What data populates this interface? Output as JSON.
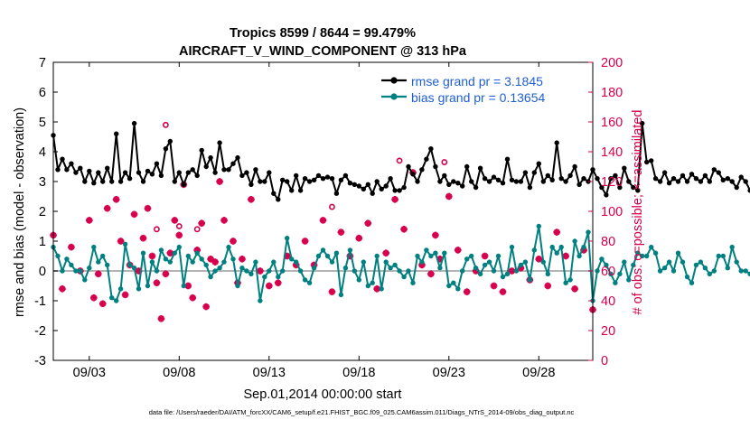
{
  "chart_data": {
    "type": "line",
    "title": "Tropics 8599 / 8644 = 99.479%",
    "subtitle": "AIRCRAFT_V_WIND_COMPONENT @ 313 hPa",
    "xlabel": "Sep.01,2014 00:00:00 start",
    "ylabel": "rmse and bias (model - observation)",
    "y2label": "# of obs: o=possible; ×=assimilated",
    "footer": "data file: /Users/raeder/DAI/ATM_forcXX/CAM6_setup/f.e21.FHIST_BGC.f09_025.CAM6assim.011/Diags_NTrS_2014-09/obs_diag_output.nc",
    "xlim": [
      1,
      31
    ],
    "ylim": [
      -3,
      7
    ],
    "y2lim": [
      0,
      200
    ],
    "x_ticks": [
      3,
      8,
      13,
      18,
      23,
      28
    ],
    "x_tick_labels": [
      "09/03",
      "09/08",
      "09/13",
      "09/18",
      "09/23",
      "09/28"
    ],
    "y_ticks": [
      -3,
      -2,
      -1,
      0,
      1,
      2,
      3,
      4,
      5,
      6,
      7
    ],
    "y2_ticks": [
      0,
      20,
      40,
      60,
      80,
      100,
      120,
      140,
      160,
      180,
      200
    ],
    "x_step": 0.25,
    "legend": {
      "location": "top-right",
      "entries": [
        "rmse grand pr = 3.1845",
        "bias grand pr = 0.13654"
      ]
    },
    "colors": {
      "rmse": "#000000",
      "bias": "#008080",
      "obs": "#d6004d",
      "zero_line": "#b4b4b4",
      "legend_text": "#1f5fd6"
    },
    "series": [
      {
        "name": "rmse",
        "values": [
          4.55,
          3.4,
          3.75,
          3.4,
          3.6,
          3.3,
          3.45,
          3.0,
          3.35,
          2.95,
          3.3,
          3.0,
          3.45,
          3.0,
          4.6,
          3.0,
          3.3,
          3.1,
          4.95,
          3.3,
          3.0,
          3.35,
          3.25,
          3.6,
          3.2,
          4.1,
          4.35,
          3.0,
          3.3,
          2.9,
          3.3,
          3.4,
          3.2,
          4.05,
          3.5,
          3.8,
          3.3,
          4.3,
          3.4,
          3.4,
          3.6,
          3.8,
          3.2,
          3.3,
          2.9,
          3.4,
          3.0,
          3.0,
          3.3,
          2.6,
          2.4,
          3.05,
          3.0,
          2.7,
          3.2,
          2.7,
          3.1,
          3.0,
          3.05,
          3.2,
          3.1,
          3.15,
          3.1,
          2.6,
          3.05,
          3.2,
          2.95,
          2.9,
          2.85,
          2.75,
          2.9,
          2.6,
          3.0,
          2.75,
          2.85,
          3.1,
          2.7,
          2.7,
          2.8,
          3.5,
          3.25,
          3.0,
          3.4,
          3.75,
          4.1,
          3.5,
          3.0,
          3.2,
          2.9,
          3.0,
          2.95,
          2.85,
          3.5,
          3.0,
          2.8,
          3.45,
          3.1,
          3.0,
          3.15,
          3.05,
          2.95,
          3.75,
          3.05,
          3.0,
          3.0,
          3.3,
          2.8,
          3.3,
          3.6,
          3.0,
          3.2,
          3.05,
          4.3,
          3.1,
          3.0,
          3.2,
          3.5,
          2.9,
          3.1,
          3.0,
          3.4,
          3.1,
          2.8,
          2.55,
          3.1,
          3.2,
          2.8,
          3.45,
          3.0,
          2.8,
          2.7,
          4.95,
          3.65,
          3.7,
          3.1,
          3.0,
          3.3,
          2.95,
          3.1,
          3.0,
          3.2,
          3.0,
          3.25,
          3.1,
          3.0,
          3.2,
          3.0,
          3.4,
          3.3,
          3.05,
          3.1,
          3.0,
          2.8,
          3.15,
          3.0,
          2.7,
          3.05,
          3.2,
          2.9,
          3.0,
          2.8,
          2.95,
          2.8,
          3.1,
          2.8,
          2.9,
          2.75,
          2.85,
          2.9,
          3.1,
          3.0,
          3.15,
          2.8,
          3.3,
          3.2,
          3.0,
          3.0,
          3.2,
          3.4,
          3.0,
          3.1,
          2.7,
          3.3,
          3.35,
          2.9,
          2.85
        ]
      },
      {
        "name": "bias",
        "values": [
          0.8,
          0.5,
          0.0,
          0.4,
          0.2,
          0.0,
          0.0,
          -0.3,
          0.1,
          0.8,
          0.3,
          0.5,
          0.2,
          -0.9,
          -1.0,
          -0.6,
          0.9,
          0.2,
          0.1,
          -0.6,
          0.6,
          -0.5,
          0.3,
          0.0,
          0.7,
          0.4,
          0.3,
          0.6,
          0.8,
          -0.5,
          0.5,
          0.3,
          0.6,
          0.4,
          0.2,
          -0.2,
          0.0,
          0.1,
          0.3,
          0.8,
          0.4,
          -0.5,
          0.1,
          0.0,
          -0.1,
          0.3,
          -1.0,
          -0.2,
          0.0,
          0.3,
          -0.2,
          0.0,
          1.1,
          0.4,
          0.3,
          0.0,
          -0.3,
          -0.4,
          0.1,
          0.5,
          0.7,
          0.5,
          0.3,
          0.6,
          -0.8,
          0.1,
          0.7,
          0.0,
          -0.3,
          0.3,
          -0.5,
          -0.4,
          0.5,
          -0.6,
          0.3,
          0.1,
          0.2,
          0.0,
          -0.2,
          0.0,
          -0.4,
          0.5,
          0.3,
          0.7,
          0.5,
          0.6,
          0.1,
          0.6,
          -0.5,
          -0.4,
          -0.6,
          0.0,
          0.4,
          0.5,
          0.1,
          -0.1,
          0.2,
          0.3,
          0.0,
          0.5,
          -0.2,
          -0.1,
          0.8,
          0.0,
          0.2,
          0.3,
          -0.3,
          0.7,
          1.5,
          0.3,
          -0.1,
          0.8,
          0.6,
          0.8,
          -0.4,
          -0.3,
          1.0,
          0.5,
          0.8,
          1.3,
          -1.0,
          0.0,
          0.4,
          0.2,
          -0.1,
          -0.4,
          -0.1,
          0.3,
          -0.3,
          0.2,
          0.6,
          0.5,
          0.5,
          0.8,
          0.6,
          0.0,
          0.1,
          0.3,
          0.0,
          0.6,
          0.3,
          -0.2,
          -0.4,
          0.2,
          0.3,
          0.1,
          -0.1,
          0.0,
          0.5,
          0.5,
          0.1,
          0.8,
          0.3,
          0.0,
          0.0,
          -0.1,
          0.0,
          -0.4,
          -0.3,
          -0.5,
          -0.5,
          -0.4,
          0.2,
          0.7,
          0.3,
          0.2,
          -0.5,
          -0.5,
          0.5,
          0.6,
          -0.2,
          -0.1,
          0.1,
          -0.3,
          -0.6,
          0.2,
          0.0,
          -0.4,
          -0.7,
          -0.5,
          -0.6,
          -0.4,
          -0.7,
          -0.5,
          0.7,
          -0.1,
          -1.0,
          -1.05
        ]
      }
    ],
    "obs_assimilated": {
      "x": [
        1.0,
        1.5,
        2.0,
        2.5,
        3.0,
        3.25,
        3.5,
        3.75,
        4.0,
        4.5,
        4.75,
        5.0,
        5.25,
        5.5,
        5.75,
        6.0,
        6.25,
        6.5,
        6.75,
        7.0,
        7.25,
        7.5,
        7.75,
        8.0,
        8.25,
        8.5,
        8.75,
        9.0,
        9.25,
        9.5,
        9.75,
        10.0,
        10.25,
        10.5,
        11.0,
        11.25,
        11.5,
        12.0,
        12.5,
        13.0,
        13.5,
        14.0,
        14.5,
        15.0,
        15.5,
        16.0,
        16.5,
        17.0,
        17.5,
        18.0,
        18.5,
        19.0,
        19.5,
        20.0,
        20.5,
        21.0,
        21.5,
        22.0,
        22.25,
        22.5,
        23.0,
        23.5,
        24.0,
        24.5,
        25.0,
        25.5,
        26.0,
        26.5,
        27.0,
        27.5,
        28.0,
        28.5,
        29.0,
        29.5,
        30.0,
        30.5,
        31.0
      ],
      "y": [
        84,
        48,
        76,
        60,
        94,
        42,
        58,
        38,
        102,
        108,
        80,
        44,
        64,
        98,
        60,
        82,
        102,
        70,
        52,
        28,
        58,
        72,
        94,
        84,
        118,
        50,
        42,
        74,
        92,
        36,
        68,
        66,
        120,
        94,
        80,
        52,
        68,
        108,
        60,
        50,
        52,
        70,
        64,
        80,
        64,
        94,
        46,
        86,
        70,
        82,
        92,
        48,
        72,
        108,
        88,
        126,
        64,
        58,
        84,
        68,
        110,
        74,
        46,
        60,
        70,
        50,
        46,
        60,
        62,
        54,
        68,
        50,
        86,
        70,
        48,
        74,
        34
      ]
    },
    "obs_possible": {
      "x": [
        6.75,
        7.25,
        8.0,
        9.0,
        16.5,
        20.25,
        22.75
      ],
      "y": [
        88,
        158,
        90,
        88,
        103,
        134,
        133
      ]
    }
  }
}
